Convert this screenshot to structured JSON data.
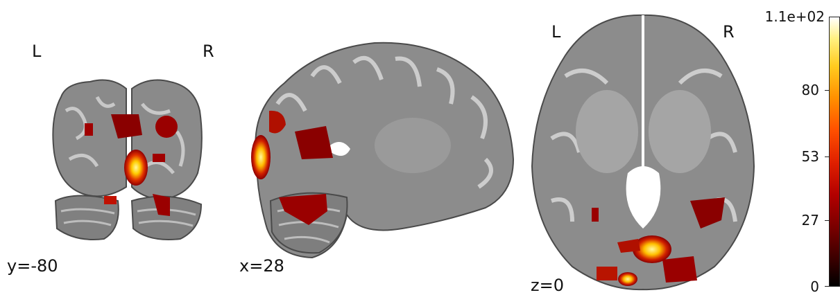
{
  "panels": {
    "coronal": {
      "left_label": "L",
      "right_label": "R",
      "coord": "y=-80"
    },
    "sagittal": {
      "coord": "x=28"
    },
    "axial": {
      "left_label": "L",
      "right_label": "R",
      "coord": "z=0"
    }
  },
  "colorbar": {
    "max_label": "1.1e+02",
    "ticks": [
      {
        "label": "80",
        "value": 80
      },
      {
        "label": "53",
        "value": 53
      },
      {
        "label": "27",
        "value": 27
      },
      {
        "label": "0",
        "value": 0
      }
    ],
    "max_value": 110,
    "colormap": "hot",
    "colors": [
      "#000000",
      "#7a0000",
      "#e02000",
      "#ff9000",
      "#fff080",
      "#ffffff"
    ]
  }
}
